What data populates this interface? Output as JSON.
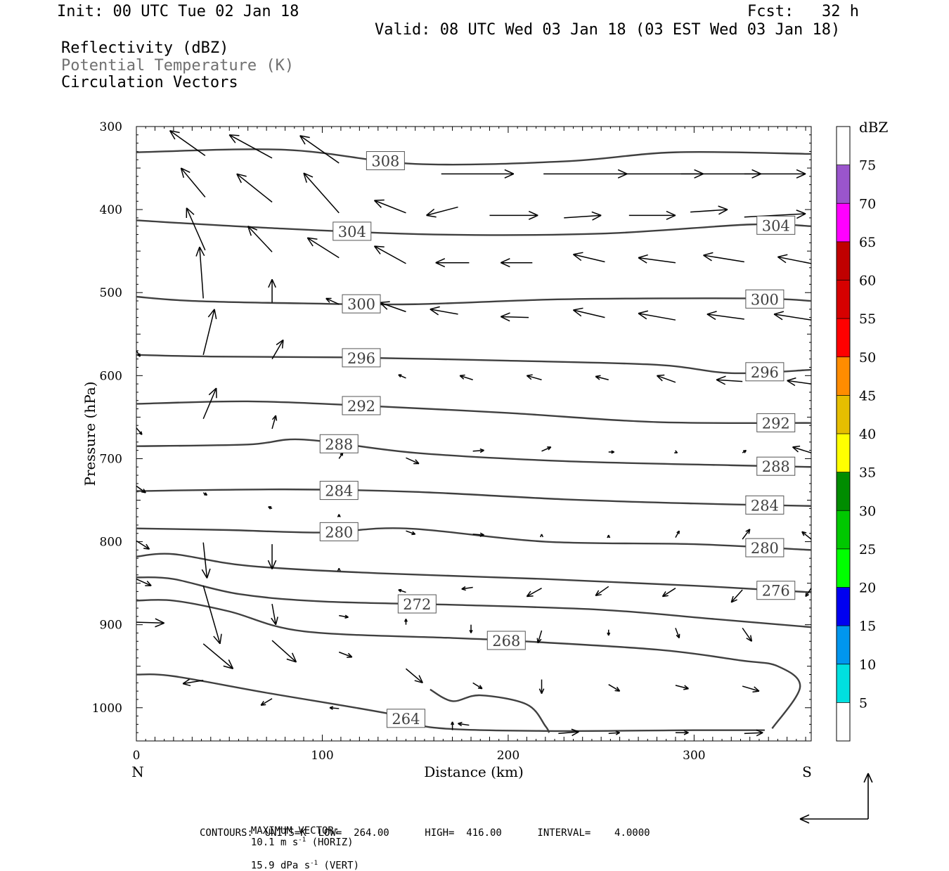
{
  "header": {
    "init": "Init: 00 UTC Tue 02 Jan 18",
    "fcst": "Fcst:   32 h",
    "valid": "Valid: 08 UTC Wed 03 Jan 18 (03 EST Wed 03 Jan 18)"
  },
  "fields": {
    "reflectivity": "Reflectivity (dBZ)",
    "theta": "Potential Temperature (K)",
    "vectors": "Circulation Vectors"
  },
  "footer": {
    "max_prefix": "MAXIMUM VECTOR:",
    "max_h": "10.1 m s",
    "max_h_exp": "-1",
    "max_h_unit": " (HORIZ)",
    "max_v": "15.9 dPa s",
    "max_v_exp": "-1",
    "max_v_unit": " (VERT)",
    "contours": "CONTOURS:  UNITS=K  LOW=  264.00      HIGH=  416.00      INTERVAL=    4.0000"
  },
  "colors": {
    "contour": "#404040",
    "vector": "#000000",
    "theta_label": "#707070"
  },
  "chart_data": {
    "type": "cross-section",
    "xlabel": "Distance (km)",
    "ylabel": "Pressure (hPa)",
    "xlim": [
      0,
      363
    ],
    "ylim": [
      1040,
      300
    ],
    "x_ticks": [
      0,
      100,
      200,
      300
    ],
    "y_ticks": [
      300,
      400,
      500,
      600,
      700,
      800,
      900,
      1000
    ],
    "left_end_label": "N",
    "right_end_label": "S",
    "colorbar": {
      "unit": "dBZ",
      "levels": [
        5,
        10,
        15,
        20,
        25,
        30,
        35,
        40,
        45,
        50,
        55,
        60,
        65,
        70,
        75
      ],
      "colors": [
        "#ffffff",
        "#00e0e0",
        "#0096ee",
        "#0000f0",
        "#00ff00",
        "#00c800",
        "#008c00",
        "#ffff00",
        "#e6be00",
        "#ff8c00",
        "#ff0000",
        "#d60000",
        "#c00000",
        "#ff00ff",
        "#9a55cc",
        "#ffffff"
      ]
    },
    "isentropes": [
      {
        "theta": 308,
        "label_x": [
          134
        ],
        "points": [
          [
            0,
            331
          ],
          [
            80,
            328
          ],
          [
            150,
            345
          ],
          [
            230,
            342
          ],
          [
            290,
            331
          ],
          [
            363,
            333
          ]
        ]
      },
      {
        "theta": 304,
        "label_x": [
          116,
          344
        ],
        "points": [
          [
            0,
            413
          ],
          [
            70,
            422
          ],
          [
            160,
            430
          ],
          [
            250,
            429
          ],
          [
            330,
            418
          ],
          [
            363,
            420
          ]
        ]
      },
      {
        "theta": 300,
        "label_x": [
          121,
          338
        ],
        "points": [
          [
            0,
            505
          ],
          [
            30,
            510
          ],
          [
            90,
            513
          ],
          [
            150,
            514
          ],
          [
            230,
            508
          ],
          [
            330,
            507
          ],
          [
            363,
            510
          ]
        ]
      },
      {
        "theta": 296,
        "label_x": [
          121,
          338
        ],
        "points": [
          [
            0,
            575
          ],
          [
            40,
            577
          ],
          [
            110,
            578
          ],
          [
            200,
            582
          ],
          [
            280,
            587
          ],
          [
            320,
            597
          ],
          [
            363,
            593
          ]
        ]
      },
      {
        "theta": 292,
        "label_x": [
          121,
          344
        ],
        "points": [
          [
            0,
            634
          ],
          [
            60,
            631
          ],
          [
            120,
            636
          ],
          [
            200,
            645
          ],
          [
            280,
            656
          ],
          [
            363,
            657
          ]
        ]
      },
      {
        "theta": 288,
        "label_x": [
          109,
          344
        ],
        "points": [
          [
            0,
            685
          ],
          [
            60,
            683
          ],
          [
            90,
            677
          ],
          [
            150,
            693
          ],
          [
            230,
            703
          ],
          [
            320,
            708
          ],
          [
            363,
            710
          ]
        ]
      },
      {
        "theta": 284,
        "label_x": [
          109,
          338
        ],
        "points": [
          [
            0,
            739
          ],
          [
            80,
            737
          ],
          [
            150,
            740
          ],
          [
            230,
            749
          ],
          [
            300,
            754
          ],
          [
            363,
            757
          ]
        ]
      },
      {
        "theta": 280,
        "label_x": [
          109,
          338
        ],
        "points": [
          [
            0,
            784
          ],
          [
            50,
            786
          ],
          [
            100,
            789
          ],
          [
            145,
            784
          ],
          [
            220,
            800
          ],
          [
            300,
            803
          ],
          [
            363,
            810
          ]
        ]
      },
      {
        "theta": 276,
        "label_x": [
          344
        ],
        "points": [
          [
            0,
            818
          ],
          [
            20,
            815
          ],
          [
            60,
            829
          ],
          [
            130,
            838
          ],
          [
            220,
            845
          ],
          [
            300,
            853
          ],
          [
            363,
            861
          ]
        ]
      },
      {
        "theta": 272,
        "label_x": [
          151
        ],
        "points": [
          [
            0,
            843
          ],
          [
            20,
            845
          ],
          [
            55,
            863
          ],
          [
            100,
            872
          ],
          [
            170,
            876
          ],
          [
            250,
            882
          ],
          [
            310,
            893
          ],
          [
            363,
            903
          ]
        ]
      },
      {
        "theta": 268,
        "label_x": [
          199
        ],
        "points": [
          [
            0,
            871
          ],
          [
            20,
            871
          ],
          [
            50,
            884
          ],
          [
            90,
            908
          ],
          [
            170,
            916
          ],
          [
            200,
            919
          ],
          [
            280,
            930
          ],
          [
            325,
            943
          ],
          [
            345,
            950
          ],
          [
            357,
            975
          ],
          [
            342,
            1025
          ]
        ]
      },
      {
        "theta": 264,
        "label_x": [
          145
        ],
        "points": [
          [
            0,
            960
          ],
          [
            20,
            962
          ],
          [
            70,
            982
          ],
          [
            140,
            1009
          ],
          [
            160,
            1024
          ],
          [
            220,
            1028
          ],
          [
            300,
            1027
          ],
          [
            338,
            1027
          ]
        ]
      },
      {
        "theta": 264,
        "label_x": [],
        "points": [
          [
            158,
            978
          ],
          [
            170,
            992
          ],
          [
            185,
            985
          ],
          [
            210,
            996
          ],
          [
            220,
            1022
          ],
          [
            222,
            1030
          ]
        ]
      }
    ],
    "vectors": [
      [
        37,
        335,
        18,
        305
      ],
      [
        73,
        338,
        50,
        310
      ],
      [
        109,
        344,
        88,
        311
      ],
      [
        37,
        385,
        24,
        350
      ],
      [
        73,
        391,
        54,
        357
      ],
      [
        109,
        404,
        90,
        356
      ],
      [
        145,
        404,
        128,
        389
      ],
      [
        164,
        357,
        203,
        357
      ],
      [
        219,
        357,
        264,
        357
      ],
      [
        260,
        357,
        305,
        357
      ],
      [
        293,
        357,
        336,
        357
      ],
      [
        327,
        357,
        360,
        357
      ],
      [
        173,
        397,
        156,
        407
      ],
      [
        190,
        407,
        216,
        407
      ],
      [
        230,
        410,
        250,
        407
      ],
      [
        265,
        407,
        290,
        407
      ],
      [
        298,
        403,
        318,
        400
      ],
      [
        327,
        409,
        360,
        405
      ],
      [
        37,
        449,
        27,
        398
      ],
      [
        73,
        451,
        60,
        420
      ],
      [
        109,
        458,
        92,
        434
      ],
      [
        145,
        465,
        128,
        444
      ],
      [
        179,
        464,
        161,
        464
      ],
      [
        213,
        464,
        196,
        464
      ],
      [
        252,
        463,
        235,
        454
      ],
      [
        290,
        464,
        270,
        458
      ],
      [
        327,
        463,
        305,
        455
      ],
      [
        363,
        465,
        345,
        457
      ],
      [
        36,
        507,
        34,
        445
      ],
      [
        73,
        512,
        73,
        484
      ],
      [
        109,
        514,
        102,
        507
      ],
      [
        145,
        523,
        131,
        512
      ],
      [
        173,
        526,
        158,
        520
      ],
      [
        211,
        530,
        196,
        529
      ],
      [
        252,
        530,
        235,
        521
      ],
      [
        290,
        533,
        270,
        525
      ],
      [
        327,
        532,
        307,
        526
      ],
      [
        363,
        533,
        343,
        526
      ],
      [
        36,
        575,
        42,
        520
      ],
      [
        73,
        580,
        79,
        557
      ],
      [
        0,
        570,
        2,
        577
      ],
      [
        145,
        603,
        141,
        599
      ],
      [
        181,
        605,
        174,
        600
      ],
      [
        218,
        605,
        210,
        600
      ],
      [
        254,
        605,
        247,
        601
      ],
      [
        290,
        608,
        280,
        600
      ],
      [
        326,
        607,
        312,
        605
      ],
      [
        363,
        610,
        350,
        606
      ],
      [
        36,
        652,
        43,
        615
      ],
      [
        73,
        664,
        75,
        648
      ],
      [
        0,
        663,
        3,
        671
      ],
      [
        109,
        700,
        111,
        693
      ],
      [
        145,
        699,
        152,
        706
      ],
      [
        181,
        691,
        187,
        690
      ],
      [
        218,
        691,
        223,
        686
      ],
      [
        254,
        692,
        257,
        692
      ],
      [
        290,
        692,
        291,
        693
      ],
      [
        326,
        693,
        328,
        690
      ],
      [
        363,
        693,
        353,
        686
      ],
      [
        0,
        733,
        5,
        741
      ],
      [
        36,
        741,
        38,
        744
      ],
      [
        73,
        760,
        71,
        758
      ],
      [
        109,
        770,
        109,
        767
      ],
      [
        145,
        787,
        150,
        791
      ],
      [
        181,
        791,
        187,
        792
      ],
      [
        218,
        792,
        218,
        791
      ],
      [
        254,
        795,
        254,
        792
      ],
      [
        290,
        795,
        292,
        787
      ],
      [
        326,
        797,
        330,
        785
      ],
      [
        363,
        797,
        358,
        788
      ],
      [
        0,
        799,
        7,
        809
      ],
      [
        36,
        801,
        38,
        844
      ],
      [
        73,
        803,
        73,
        833
      ],
      [
        109,
        833,
        109,
        832
      ],
      [
        145,
        861,
        141,
        858
      ],
      [
        181,
        855,
        175,
        857
      ],
      [
        218,
        856,
        210,
        866
      ],
      [
        254,
        854,
        247,
        865
      ],
      [
        290,
        856,
        283,
        866
      ],
      [
        326,
        858,
        320,
        873
      ],
      [
        363,
        856,
        360,
        866
      ],
      [
        0,
        845,
        8,
        853
      ],
      [
        36,
        853,
        45,
        923
      ],
      [
        73,
        875,
        75,
        900
      ],
      [
        109,
        889,
        114,
        891
      ],
      [
        145,
        900,
        145,
        893
      ],
      [
        180,
        900,
        180,
        910
      ],
      [
        218,
        907,
        216,
        922
      ],
      [
        254,
        906,
        254,
        913
      ],
      [
        290,
        904,
        292,
        916
      ],
      [
        326,
        904,
        331,
        920
      ],
      [
        0,
        897,
        15,
        898
      ],
      [
        36,
        923,
        52,
        953
      ],
      [
        73,
        919,
        86,
        945
      ],
      [
        109,
        933,
        116,
        939
      ],
      [
        145,
        953,
        154,
        970
      ],
      [
        181,
        970,
        186,
        977
      ],
      [
        218,
        966,
        218,
        983
      ],
      [
        254,
        972,
        260,
        980
      ],
      [
        290,
        973,
        297,
        977
      ],
      [
        326,
        974,
        335,
        980
      ],
      [
        36,
        967,
        25,
        971
      ],
      [
        73,
        989,
        67,
        997
      ],
      [
        109,
        1001,
        104,
        1000
      ],
      [
        145,
        1018,
        140,
        1020
      ],
      [
        179,
        1021,
        173,
        1019
      ],
      [
        170,
        1027,
        170,
        1017
      ],
      [
        227,
        1031,
        238,
        1029
      ],
      [
        254,
        1031,
        260,
        1030
      ],
      [
        290,
        1030,
        297,
        1030
      ],
      [
        327,
        1031,
        337,
        1030
      ]
    ]
  }
}
